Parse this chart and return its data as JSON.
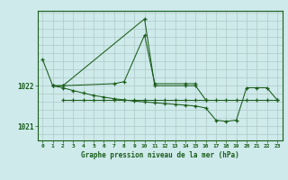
{
  "bg_color": "#ceeaea",
  "grid_color_v": "#b0c8c8",
  "grid_color_h": "#b0c8c8",
  "line_color": "#1a5c1a",
  "x_ticks": [
    0,
    1,
    2,
    3,
    4,
    5,
    6,
    7,
    8,
    9,
    10,
    11,
    12,
    13,
    14,
    15,
    16,
    17,
    18,
    19,
    20,
    21,
    22,
    23
  ],
  "ylim": [
    1020.65,
    1023.85
  ],
  "yticks": [
    1021,
    1022
  ],
  "xlabel": "Graphe pression niveau de la mer (hPa)",
  "line1_x": [
    0,
    1,
    2,
    7,
    8,
    10,
    11,
    14,
    15
  ],
  "line1_y": [
    1022.65,
    1022.0,
    1022.0,
    1022.05,
    1022.1,
    1023.25,
    1022.05,
    1022.05,
    1022.05
  ],
  "line2_x": [
    1,
    2,
    10,
    11,
    14,
    15,
    16
  ],
  "line2_y": [
    1022.0,
    1022.0,
    1023.65,
    1022.0,
    1022.0,
    1022.0,
    1021.65
  ],
  "line3_x": [
    2,
    3,
    4,
    5,
    6,
    7,
    8,
    9,
    10,
    11,
    12,
    13,
    14,
    15,
    16,
    17,
    18,
    19,
    20,
    21,
    22,
    23
  ],
  "line3_y": [
    1021.65,
    1021.65,
    1021.65,
    1021.65,
    1021.65,
    1021.65,
    1021.65,
    1021.65,
    1021.65,
    1021.65,
    1021.65,
    1021.65,
    1021.65,
    1021.65,
    1021.65,
    1021.65,
    1021.65,
    1021.65,
    1021.65,
    1021.65,
    1021.65,
    1021.65
  ],
  "line4_x": [
    1,
    2,
    3,
    4,
    5,
    6,
    7,
    8,
    9,
    10,
    11,
    12,
    13,
    14,
    15,
    16,
    17,
    18,
    19,
    20,
    21,
    22,
    23
  ],
  "line4_y": [
    1022.0,
    1021.95,
    1021.88,
    1021.82,
    1021.76,
    1021.72,
    1021.68,
    1021.65,
    1021.62,
    1021.6,
    1021.58,
    1021.56,
    1021.54,
    1021.52,
    1021.5,
    1021.45,
    1021.15,
    1021.12,
    1021.15,
    1021.95,
    1021.95,
    1021.95,
    1021.65
  ]
}
